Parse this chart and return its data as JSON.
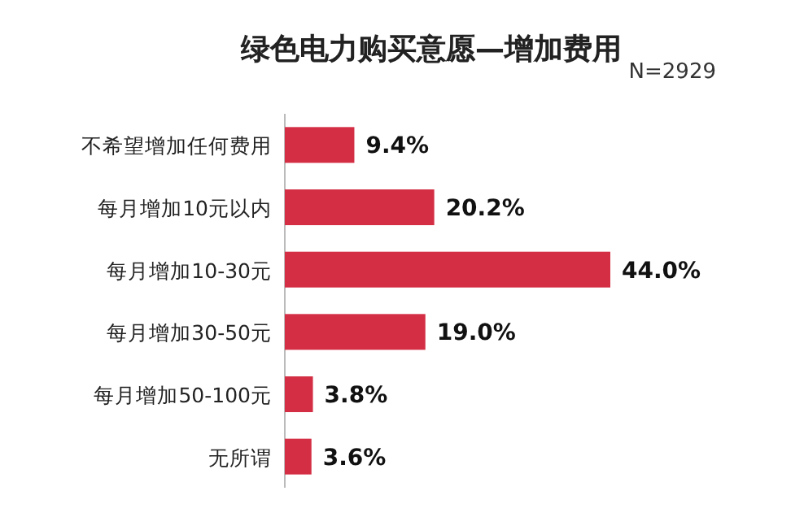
{
  "chart_data": {
    "type": "bar",
    "orientation": "horizontal",
    "title": "绿色电力购买意愿—增加费用",
    "annotations": [
      "N=2929"
    ],
    "categories": [
      "不希望增加任何费用",
      "每月增加10元以内",
      "每月增加10-30元",
      "每月增加30-50元",
      "每月增加50-100元",
      "无所谓"
    ],
    "values": [
      9.4,
      20.2,
      44.0,
      19.0,
      3.8,
      3.6
    ],
    "value_labels": [
      "9.4%",
      "20.2%",
      "44.0%",
      "19.0%",
      "3.8%",
      "3.6%"
    ],
    "color": "#d42e44"
  }
}
